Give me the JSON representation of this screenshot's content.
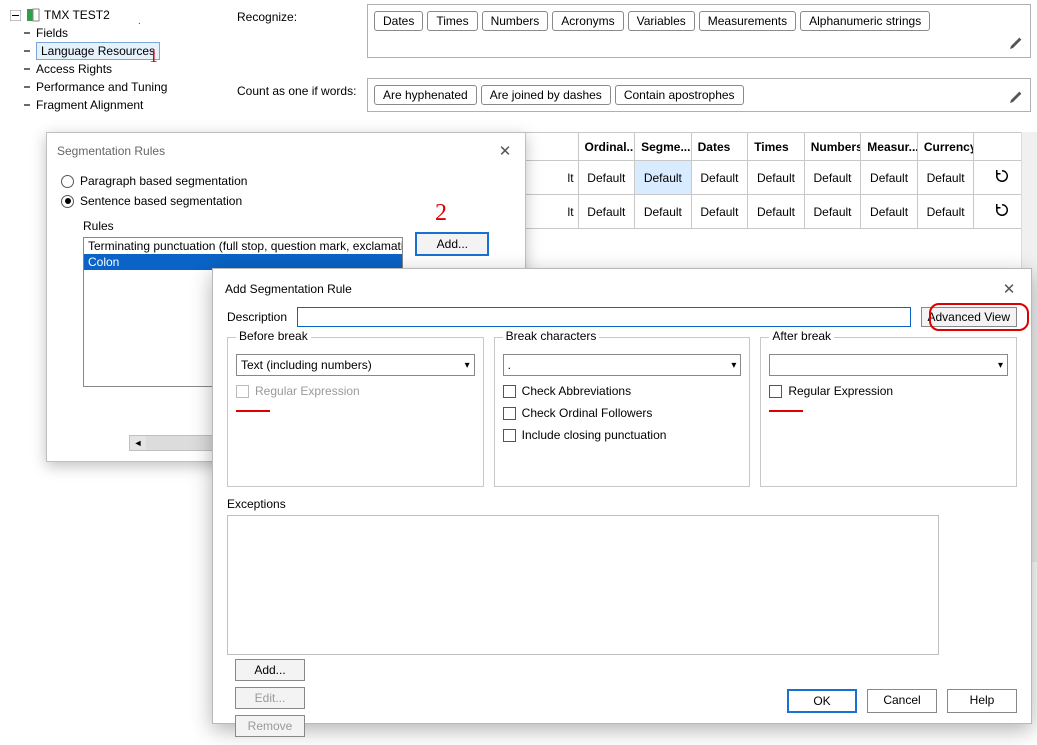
{
  "tree": {
    "root": "TMX TEST2",
    "items": [
      "Fields",
      "Language Resources",
      "Access Rights",
      "Performance and Tuning",
      "Fragment Alignment"
    ],
    "selected_index": 1
  },
  "settings": {
    "recognize_label": "Recognize:",
    "recognize_chips": [
      "Dates",
      "Times",
      "Numbers",
      "Acronyms",
      "Variables",
      "Measurements",
      "Alphanumeric strings"
    ],
    "count_label": "Count as one if words:",
    "count_chips": [
      "Are hyphenated",
      "Are joined by dashes",
      "Contain apostrophes"
    ]
  },
  "grid": {
    "headers": [
      "",
      "Ordinal...",
      "Segme...",
      "Dates",
      "Times",
      "Numbers",
      "Measur...",
      "Currency",
      ""
    ],
    "rows": [
      {
        "c0": "lt",
        "cells": [
          "Default",
          "Default",
          "Default",
          "Default",
          "Default",
          "Default",
          "Default"
        ],
        "hl_col": 2
      },
      {
        "c0": "lt",
        "cells": [
          "Default",
          "Default",
          "Default",
          "Default",
          "Default",
          "Default",
          "Default"
        ],
        "hl_col": -1
      }
    ]
  },
  "dlg1": {
    "title": "Segmentation Rules",
    "radio1": "Paragraph based segmentation",
    "radio2": "Sentence based segmentation",
    "rules_label": "Rules",
    "rule_lines": [
      "Terminating punctuation (full stop, question mark, exclamation mark",
      "Colon"
    ],
    "selected_rule": 1,
    "add_btn": "Add..."
  },
  "annot": {
    "mark1": "1",
    "mark2": "2"
  },
  "dlg2": {
    "title": "Add Segmentation Rule",
    "desc_label": "Description",
    "desc_value": "",
    "adv_btn": "Advanced View",
    "group_before": "Before break",
    "before_combo": "Text (including numbers)",
    "before_regex": "Regular Expression",
    "group_break": "Break characters",
    "break_combo": ".",
    "chk_abbrev": "Check Abbreviations",
    "chk_ordinal": "Check Ordinal Followers",
    "chk_closing": "Include closing punctuation",
    "group_after": "After break",
    "after_combo": "",
    "after_regex": "Regular Expression",
    "exceptions_label": "Exceptions",
    "btn_add": "Add...",
    "btn_edit": "Edit...",
    "btn_remove": "Remove",
    "btn_ok": "OK",
    "btn_cancel": "Cancel",
    "btn_help": "Help"
  }
}
